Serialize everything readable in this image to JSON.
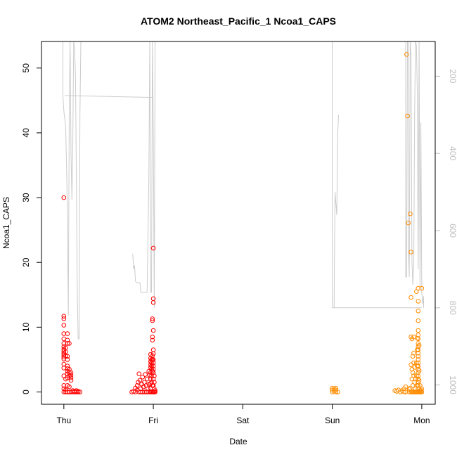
{
  "chart_data": {
    "type": "scatter",
    "title": "ATOM2 Northeast_Pacific_1 Ncoa1_CAPS",
    "xlabel": "Date",
    "ylabel": "Ncoa1_CAPS",
    "x_ticks": [
      "Thu",
      "Fri",
      "Sat",
      "Sun",
      "Mon"
    ],
    "xlim_days": [
      -0.25,
      4.15
    ],
    "ylim": [
      -1.9,
      54.1
    ],
    "y_ticks": [
      0,
      10,
      20,
      30,
      40,
      50
    ],
    "y2_ticks": [
      200,
      400,
      600,
      800,
      1000
    ],
    "y2lim": [
      1050,
      110
    ],
    "y2_reversed": true,
    "grid": false,
    "colors": {
      "red_series": "#ff0000",
      "orange_series": "#ff8c00",
      "depth_line": "#cccccc"
    },
    "series": [
      {
        "color": "#ff0000",
        "marker": "open-circle",
        "points": [
          [
            0.0,
            30.0
          ],
          [
            0.0,
            11.7
          ],
          [
            0.0,
            11.3
          ],
          [
            0.0,
            10.3
          ],
          [
            0.0,
            9.0
          ],
          [
            0.0,
            8.2
          ],
          [
            0.0,
            7.5
          ],
          [
            0.0,
            7.0
          ],
          [
            0.0,
            6.6
          ],
          [
            0.0,
            6.3
          ],
          [
            0.0,
            6.0
          ],
          [
            0.0,
            5.7
          ],
          [
            0.0,
            5.4
          ],
          [
            0.0,
            5.1
          ],
          [
            0.0,
            4.3
          ],
          [
            0.0,
            3.7
          ],
          [
            0.0,
            2.5
          ],
          [
            0.0,
            1.0
          ],
          [
            0.0,
            0.5
          ],
          [
            0.0,
            0.0
          ],
          [
            0.02,
            6.8
          ],
          [
            0.02,
            6.2
          ],
          [
            0.02,
            5.6
          ],
          [
            0.02,
            2.0
          ],
          [
            0.02,
            0.3
          ],
          [
            0.02,
            0.0
          ],
          [
            0.04,
            9.0
          ],
          [
            0.04,
            8.0
          ],
          [
            0.04,
            7.5
          ],
          [
            0.04,
            5.5
          ],
          [
            0.04,
            5.0
          ],
          [
            0.04,
            4.0
          ],
          [
            0.04,
            3.6
          ],
          [
            0.04,
            3.2
          ],
          [
            0.04,
            2.8
          ],
          [
            0.04,
            2.2
          ],
          [
            0.04,
            1.0
          ],
          [
            0.04,
            0.0
          ],
          [
            0.06,
            7.5
          ],
          [
            0.06,
            3.5
          ],
          [
            0.06,
            3.0
          ],
          [
            0.06,
            2.5
          ],
          [
            0.06,
            0.8
          ],
          [
            0.06,
            0.0
          ],
          [
            0.08,
            3.0
          ],
          [
            0.08,
            2.6
          ],
          [
            0.08,
            2.2
          ],
          [
            0.08,
            1.8
          ],
          [
            0.08,
            0.0
          ],
          [
            0.1,
            0.2
          ],
          [
            0.1,
            0.0
          ],
          [
            0.12,
            0.1
          ],
          [
            0.12,
            0.0
          ],
          [
            0.14,
            0.2
          ],
          [
            0.14,
            0.0
          ],
          [
            0.16,
            0.1
          ],
          [
            0.16,
            0.0
          ],
          [
            0.18,
            0.0
          ],
          [
            0.76,
            0.0
          ],
          [
            0.78,
            0.1
          ],
          [
            0.8,
            0.0
          ],
          [
            0.8,
            0.6
          ],
          [
            0.82,
            0.3
          ],
          [
            0.82,
            1.0
          ],
          [
            0.83,
            1.5
          ],
          [
            0.84,
            0.0
          ],
          [
            0.84,
            2.8
          ],
          [
            0.85,
            1.8
          ],
          [
            0.86,
            0.5
          ],
          [
            0.86,
            0.0
          ],
          [
            0.87,
            1.2
          ],
          [
            0.88,
            2.3
          ],
          [
            0.88,
            0.0
          ],
          [
            0.89,
            0.8
          ],
          [
            0.9,
            1.5
          ],
          [
            0.9,
            0.0
          ],
          [
            0.91,
            2.7
          ],
          [
            0.92,
            1.0
          ],
          [
            0.92,
            0.0
          ],
          [
            0.93,
            2.0
          ],
          [
            0.94,
            0.5
          ],
          [
            0.94,
            0.0
          ],
          [
            0.95,
            1.2
          ],
          [
            0.95,
            3.2
          ],
          [
            0.96,
            2.6
          ],
          [
            0.96,
            0.0
          ],
          [
            0.97,
            5.8
          ],
          [
            0.97,
            5.2
          ],
          [
            0.97,
            4.7
          ],
          [
            0.97,
            4.2
          ],
          [
            0.97,
            3.8
          ],
          [
            0.97,
            3.0
          ],
          [
            0.97,
            2.0
          ],
          [
            0.97,
            1.3
          ],
          [
            0.97,
            0.6
          ],
          [
            0.97,
            0.0
          ],
          [
            0.98,
            5.0
          ],
          [
            0.98,
            4.5
          ],
          [
            0.98,
            4.0
          ],
          [
            0.98,
            3.5
          ],
          [
            0.98,
            2.5
          ],
          [
            0.98,
            1.5
          ],
          [
            0.98,
            0.0
          ],
          [
            0.99,
            11.3
          ],
          [
            0.99,
            11.0
          ],
          [
            0.99,
            8.5
          ],
          [
            0.99,
            8.0
          ],
          [
            0.99,
            5.6
          ],
          [
            0.99,
            5.0
          ],
          [
            0.99,
            3.2
          ],
          [
            0.99,
            1.0
          ],
          [
            0.99,
            0.0
          ],
          [
            1.0,
            22.2
          ],
          [
            1.0,
            14.4
          ],
          [
            1.0,
            13.8
          ],
          [
            1.0,
            9.5
          ],
          [
            1.0,
            6.5
          ],
          [
            1.0,
            5.9
          ],
          [
            1.0,
            5.0
          ],
          [
            1.0,
            4.5
          ],
          [
            1.0,
            4.0
          ],
          [
            1.0,
            3.5
          ],
          [
            1.0,
            3.0
          ],
          [
            1.0,
            2.0
          ],
          [
            1.0,
            1.0
          ],
          [
            1.0,
            0.0
          ],
          [
            1.01,
            2.5
          ],
          [
            1.01,
            1.5
          ],
          [
            1.01,
            0.5
          ],
          [
            1.01,
            0.0
          ],
          [
            1.02,
            0.2
          ],
          [
            1.02,
            0.0
          ]
        ]
      },
      {
        "color": "#ff8c00",
        "marker": "open-circle",
        "points": [
          [
            3.0,
            0.6
          ],
          [
            3.0,
            0.3
          ],
          [
            3.0,
            0.0
          ],
          [
            3.02,
            0.5
          ],
          [
            3.02,
            0.1
          ],
          [
            3.04,
            0.6
          ],
          [
            3.04,
            0.3
          ],
          [
            3.04,
            0.0
          ],
          [
            3.06,
            0.0
          ],
          [
            3.7,
            0.2
          ],
          [
            3.72,
            0.1
          ],
          [
            3.74,
            0.3
          ],
          [
            3.76,
            0.0
          ],
          [
            3.78,
            0.2
          ],
          [
            3.8,
            0.5
          ],
          [
            3.8,
            0.0
          ],
          [
            3.82,
            0.8
          ],
          [
            3.82,
            0.0
          ],
          [
            3.83,
            52.1
          ],
          [
            3.84,
            42.6
          ],
          [
            3.85,
            26.1
          ],
          [
            3.86,
            0.4
          ],
          [
            3.86,
            0.0
          ],
          [
            3.87,
            27.5
          ],
          [
            3.87,
            0.6
          ],
          [
            3.88,
            21.6
          ],
          [
            3.88,
            14.6
          ],
          [
            3.88,
            8.5
          ],
          [
            3.88,
            4.2
          ],
          [
            3.88,
            0.0
          ],
          [
            3.89,
            8.2
          ],
          [
            3.89,
            3.5
          ],
          [
            3.89,
            2.0
          ],
          [
            3.89,
            0.0
          ],
          [
            3.9,
            5.5
          ],
          [
            3.9,
            3.0
          ],
          [
            3.9,
            1.0
          ],
          [
            3.9,
            0.0
          ],
          [
            3.91,
            8.5
          ],
          [
            3.91,
            6.0
          ],
          [
            3.91,
            4.5
          ],
          [
            3.91,
            2.5
          ],
          [
            3.91,
            0.0
          ],
          [
            3.92,
            3.8
          ],
          [
            3.92,
            1.5
          ],
          [
            3.92,
            0.0
          ],
          [
            3.93,
            2.0
          ],
          [
            3.93,
            0.5
          ],
          [
            3.93,
            0.0
          ],
          [
            3.94,
            15.5
          ],
          [
            3.94,
            4.5
          ],
          [
            3.94,
            2.5
          ],
          [
            3.94,
            0.0
          ],
          [
            3.95,
            8.3
          ],
          [
            3.95,
            6.5
          ],
          [
            3.95,
            4.0
          ],
          [
            3.95,
            1.0
          ],
          [
            3.95,
            0.0
          ],
          [
            3.96,
            16.0
          ],
          [
            3.96,
            14.0
          ],
          [
            3.96,
            12.5
          ],
          [
            3.96,
            11.0
          ],
          [
            3.96,
            9.5
          ],
          [
            3.96,
            8.8
          ],
          [
            3.96,
            8.2
          ],
          [
            3.96,
            7.5
          ],
          [
            3.96,
            7.0
          ],
          [
            3.96,
            6.5
          ],
          [
            3.96,
            6.0
          ],
          [
            3.96,
            5.5
          ],
          [
            3.96,
            5.0
          ],
          [
            3.96,
            4.5
          ],
          [
            3.96,
            4.0
          ],
          [
            3.96,
            3.5
          ],
          [
            3.96,
            3.0
          ],
          [
            3.96,
            2.5
          ],
          [
            3.96,
            2.0
          ],
          [
            3.96,
            1.5
          ],
          [
            3.96,
            1.0
          ],
          [
            3.96,
            0.5
          ],
          [
            3.96,
            0.0
          ],
          [
            3.97,
            7.2
          ],
          [
            3.97,
            3.3
          ],
          [
            3.97,
            1.8
          ],
          [
            3.97,
            0.0
          ],
          [
            3.98,
            1.0
          ],
          [
            3.98,
            0.2
          ],
          [
            3.98,
            0.0
          ],
          [
            3.99,
            0.3
          ],
          [
            3.99,
            0.0
          ],
          [
            4.0,
            16.0
          ],
          [
            4.0,
            0.5
          ],
          [
            4.0,
            0.0
          ]
        ]
      }
    ],
    "depth_line": {
      "color": "#cccccc",
      "segments": [
        [
          [
            -0.01,
            110
          ],
          [
            -0.01,
            250
          ],
          [
            0.0,
            290
          ],
          [
            0.02,
            330
          ],
          [
            0.03,
            430
          ],
          [
            0.04,
            560
          ],
          [
            0.05,
            820
          ],
          [
            0.06,
            290
          ],
          [
            0.07,
            110
          ],
          [
            0.08,
            400
          ],
          [
            0.09,
            520
          ],
          [
            0.1,
            380
          ],
          [
            0.11,
            110
          ],
          [
            0.12,
            130
          ],
          [
            0.13,
            200
          ],
          [
            0.14,
            460
          ],
          [
            0.15,
            760
          ],
          [
            0.16,
            880
          ],
          [
            0.17,
            880
          ],
          [
            0.18,
            300
          ],
          [
            0.19,
            110
          ]
        ],
        [
          [
            0.01,
            250
          ],
          [
            1.0,
            255
          ]
        ],
        [
          [
            0.77,
            660
          ],
          [
            0.78,
            700
          ],
          [
            0.79,
            690
          ],
          [
            0.8,
            730
          ],
          [
            0.81,
            735
          ],
          [
            0.85,
            735
          ],
          [
            0.86,
            760
          ],
          [
            0.93,
            760
          ],
          [
            0.95,
            470
          ],
          [
            0.96,
            110
          ],
          [
            0.97,
            760
          ],
          [
            0.98,
            760
          ],
          [
            0.99,
            110
          ],
          [
            1.0,
            350
          ],
          [
            1.01,
            800
          ],
          [
            1.02,
            110
          ]
        ],
        [
          [
            3.0,
            110
          ],
          [
            3.0,
            800
          ],
          [
            3.02,
            800
          ],
          [
            3.03,
            500
          ],
          [
            3.05,
            560
          ],
          [
            3.06,
            350
          ],
          [
            3.07,
            300
          ]
        ],
        [
          [
            3.02,
            800
          ],
          [
            4.0,
            800
          ]
        ],
        [
          [
            3.82,
            110
          ],
          [
            3.82,
            720
          ],
          [
            3.83,
            720
          ],
          [
            3.84,
            110
          ],
          [
            3.85,
            110
          ],
          [
            3.85,
            640
          ],
          [
            3.86,
            720
          ],
          [
            3.87,
            110
          ],
          [
            3.88,
            140
          ],
          [
            3.89,
            680
          ],
          [
            3.9,
            740
          ],
          [
            3.91,
            690
          ],
          [
            3.92,
            300
          ],
          [
            3.93,
            110
          ],
          [
            3.94,
            120
          ],
          [
            3.95,
            240
          ],
          [
            3.96,
            700
          ],
          [
            3.97,
            110
          ],
          [
            3.98,
            750
          ],
          [
            3.99,
            320
          ],
          [
            4.0,
            760
          ],
          [
            4.01,
            790
          ],
          [
            4.02,
            770
          ],
          [
            4.02,
            800
          ]
        ]
      ]
    }
  }
}
